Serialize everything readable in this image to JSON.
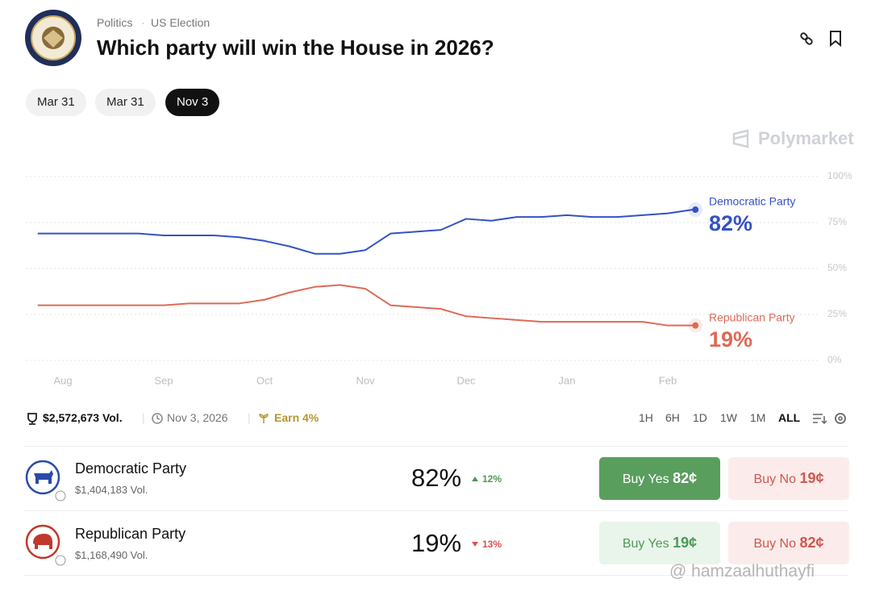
{
  "header": {
    "breadcrumb": [
      "Politics",
      "US Election"
    ],
    "title": "Which party will win the House in 2026?",
    "date_tabs": [
      "Mar 31",
      "Mar 31",
      "Nov 3"
    ],
    "active_tab": 2,
    "brand": "Polymarket"
  },
  "chart_data": {
    "type": "line",
    "categories": [
      null,
      "Aug",
      null,
      null,
      null,
      "Sep",
      null,
      null,
      null,
      "Oct",
      null,
      null,
      null,
      "Nov",
      null,
      null,
      null,
      "Dec",
      null,
      null,
      null,
      "Jan",
      null,
      null,
      null,
      "Feb",
      null
    ],
    "series": [
      {
        "name": "Democratic Party",
        "color": "#3552c4",
        "end_label": "82%",
        "values": [
          69,
          69,
          69,
          69,
          69,
          68,
          68,
          68,
          67,
          65,
          62,
          58,
          58,
          60,
          69,
          70,
          71,
          77,
          76,
          78,
          78,
          79,
          78,
          78,
          79,
          80,
          82
        ]
      },
      {
        "name": "Republican Party",
        "color": "#dd6a55",
        "end_label": "19%",
        "values": [
          30,
          30,
          30,
          30,
          30,
          30,
          31,
          31,
          31,
          33,
          37,
          40,
          41,
          39,
          30,
          29,
          28,
          24,
          23,
          22,
          21,
          21,
          21,
          21,
          21,
          19,
          19
        ]
      }
    ],
    "ylim": [
      0,
      100
    ],
    "yticks": [
      {
        "value": 0,
        "label": "0%"
      },
      {
        "value": 25,
        "label": "25%"
      },
      {
        "value": 50,
        "label": "50%"
      },
      {
        "value": 75,
        "label": "75%"
      },
      {
        "value": 100,
        "label": "100%"
      }
    ],
    "grid": true
  },
  "stats": {
    "volume": "$2,572,673 Vol.",
    "end_date": "Nov 3, 2026",
    "earn": "Earn 4%",
    "ranges": [
      "1H",
      "6H",
      "1D",
      "1W",
      "1M",
      "ALL"
    ],
    "active_range": 5
  },
  "outcomes": [
    {
      "name": "Democratic Party",
      "volume": "$1,404,183 Vol.",
      "chance": "82%",
      "change": "12%",
      "change_direction": "up",
      "buy_yes": "Buy Yes",
      "yes_price": "82¢",
      "buy_no": "Buy No",
      "no_price": "19¢"
    },
    {
      "name": "Republican Party",
      "volume": "$1,168,490 Vol.",
      "chance": "19%",
      "change": "13%",
      "change_direction": "down",
      "buy_yes": "Buy Yes",
      "yes_price": "19¢",
      "buy_no": "Buy No",
      "no_price": "82¢"
    }
  ],
  "watermark": "@ hamzaalhuthayfi"
}
